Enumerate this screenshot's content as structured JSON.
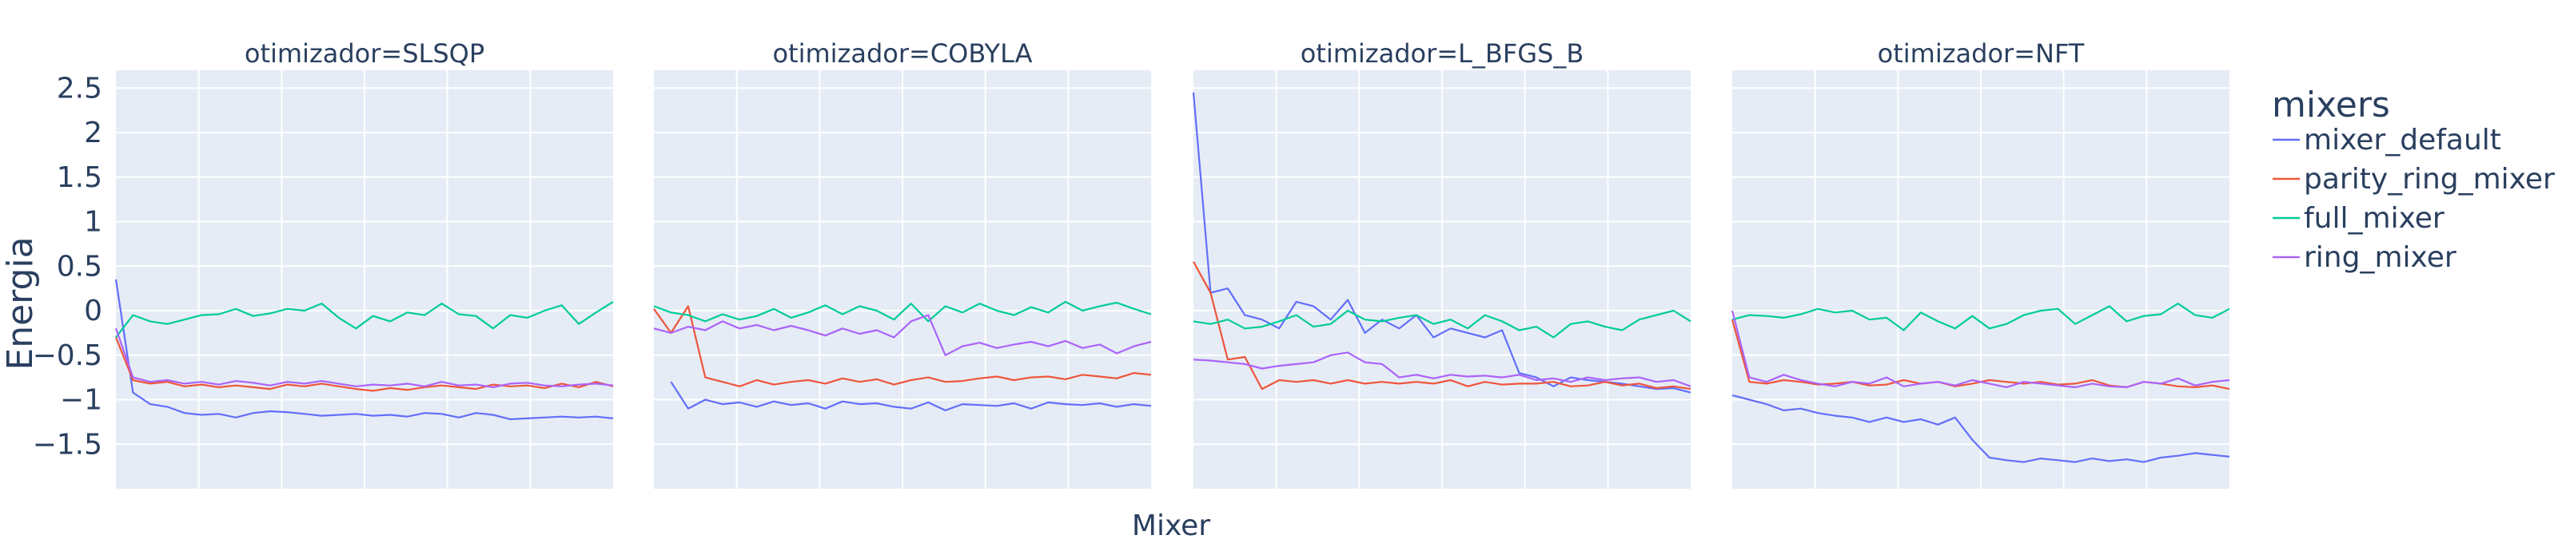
{
  "chart_data": {
    "type": "line",
    "ylabel": "Energia",
    "xlabel": "Mixer",
    "ylim": [
      -2.0,
      2.7
    ],
    "yticks": [
      {
        "v": 2.5,
        "label": "2.5"
      },
      {
        "v": 2,
        "label": "2"
      },
      {
        "v": 1.5,
        "label": "1.5"
      },
      {
        "v": 1,
        "label": "1"
      },
      {
        "v": 0.5,
        "label": "0.5"
      },
      {
        "v": 0,
        "label": "0"
      },
      {
        "v": -0.5,
        "label": "−0.5"
      },
      {
        "v": -1,
        "label": "−1"
      },
      {
        "v": -1.5,
        "label": "−1.5"
      }
    ],
    "legend": {
      "title": "mixers",
      "items": [
        {
          "name": "mixer_default",
          "color": "#636efa"
        },
        {
          "name": "parity_ring_mixer",
          "color": "#ef553b"
        },
        {
          "name": "full_mixer",
          "color": "#00cc96"
        },
        {
          "name": "ring_mixer",
          "color": "#ab63fa"
        }
      ]
    },
    "facets": [
      {
        "title": "otimizador=SLSQP",
        "series": {
          "mixer_default": [
            0.35,
            -0.92,
            -1.05,
            -1.08,
            -1.15,
            -1.17,
            -1.16,
            -1.2,
            -1.15,
            -1.13,
            -1.14,
            -1.16,
            -1.18,
            -1.17,
            -1.16,
            -1.18,
            -1.17,
            -1.19,
            -1.15,
            -1.16,
            -1.2,
            -1.15,
            -1.17,
            -1.22,
            -1.21,
            -1.2,
            -1.19,
            -1.2,
            -1.19,
            -1.21
          ],
          "parity_ring_mixer": [
            -0.3,
            -0.78,
            -0.82,
            -0.8,
            -0.85,
            -0.83,
            -0.86,
            -0.84,
            -0.86,
            -0.88,
            -0.83,
            -0.85,
            -0.82,
            -0.85,
            -0.88,
            -0.9,
            -0.87,
            -0.89,
            -0.86,
            -0.84,
            -0.86,
            -0.88,
            -0.83,
            -0.85,
            -0.84,
            -0.87,
            -0.82,
            -0.86,
            -0.8,
            -0.85
          ],
          "full_mixer": [
            -0.3,
            -0.05,
            -0.12,
            -0.15,
            -0.1,
            -0.05,
            -0.04,
            0.02,
            -0.06,
            -0.03,
            0.02,
            0.0,
            0.08,
            -0.08,
            -0.2,
            -0.06,
            -0.12,
            -0.02,
            -0.05,
            0.08,
            -0.04,
            -0.06,
            -0.2,
            -0.05,
            -0.08,
            0.0,
            0.06,
            -0.15,
            -0.02,
            0.1
          ],
          "ring_mixer": [
            -0.2,
            -0.75,
            -0.8,
            -0.78,
            -0.82,
            -0.8,
            -0.83,
            -0.79,
            -0.81,
            -0.84,
            -0.8,
            -0.82,
            -0.79,
            -0.82,
            -0.85,
            -0.83,
            -0.84,
            -0.82,
            -0.85,
            -0.8,
            -0.84,
            -0.83,
            -0.86,
            -0.82,
            -0.81,
            -0.84,
            -0.85,
            -0.83,
            -0.82,
            -0.84
          ]
        }
      },
      {
        "title": "otimizador=COBYLA",
        "series": {
          "mixer_default": [
            null,
            -0.8,
            -1.1,
            -1.0,
            -1.05,
            -1.03,
            -1.08,
            -1.02,
            -1.06,
            -1.04,
            -1.1,
            -1.02,
            -1.05,
            -1.04,
            -1.08,
            -1.1,
            -1.03,
            -1.12,
            -1.05,
            -1.06,
            -1.07,
            -1.04,
            -1.1,
            -1.03,
            -1.05,
            -1.06,
            -1.04,
            -1.08,
            -1.05,
            -1.07
          ],
          "parity_ring_mixer": [
            0.02,
            -0.25,
            0.05,
            -0.75,
            -0.8,
            -0.85,
            -0.78,
            -0.83,
            -0.8,
            -0.78,
            -0.82,
            -0.76,
            -0.8,
            -0.77,
            -0.83,
            -0.78,
            -0.75,
            -0.8,
            -0.79,
            -0.76,
            -0.74,
            -0.78,
            -0.75,
            -0.74,
            -0.77,
            -0.72,
            -0.74,
            -0.76,
            -0.7,
            -0.72
          ],
          "full_mixer": [
            0.05,
            -0.02,
            -0.05,
            -0.12,
            -0.04,
            -0.1,
            -0.06,
            0.02,
            -0.08,
            -0.02,
            0.06,
            -0.04,
            0.05,
            0.0,
            -0.1,
            0.08,
            -0.12,
            0.05,
            -0.02,
            0.08,
            0.0,
            -0.05,
            0.04,
            -0.02,
            0.1,
            0.0,
            0.05,
            0.09,
            0.02,
            -0.04
          ],
          "ring_mixer": [
            -0.2,
            -0.25,
            -0.18,
            -0.22,
            -0.12,
            -0.2,
            -0.16,
            -0.22,
            -0.17,
            -0.22,
            -0.28,
            -0.2,
            -0.26,
            -0.22,
            -0.3,
            -0.12,
            -0.05,
            -0.5,
            -0.4,
            -0.36,
            -0.42,
            -0.38,
            -0.35,
            -0.4,
            -0.34,
            -0.42,
            -0.38,
            -0.48,
            -0.4,
            -0.35
          ]
        }
      },
      {
        "title": "otimizador=L_BFGS_B",
        "series": {
          "mixer_default": [
            2.45,
            0.2,
            0.25,
            -0.05,
            -0.1,
            -0.2,
            0.1,
            0.05,
            -0.1,
            0.12,
            -0.25,
            -0.1,
            -0.2,
            -0.05,
            -0.3,
            -0.2,
            -0.25,
            -0.3,
            -0.22,
            -0.7,
            -0.75,
            -0.85,
            -0.75,
            -0.78,
            -0.8,
            -0.82,
            -0.85,
            -0.88,
            -0.87,
            -0.92
          ],
          "parity_ring_mixer": [
            0.55,
            0.2,
            -0.55,
            -0.52,
            -0.88,
            -0.78,
            -0.8,
            -0.78,
            -0.82,
            -0.78,
            -0.82,
            -0.8,
            -0.82,
            -0.8,
            -0.82,
            -0.78,
            -0.85,
            -0.8,
            -0.83,
            -0.82,
            -0.82,
            -0.8,
            -0.85,
            -0.84,
            -0.8,
            -0.84,
            -0.82,
            -0.87,
            -0.85,
            -0.88
          ],
          "full_mixer": [
            -0.12,
            -0.15,
            -0.1,
            -0.2,
            -0.18,
            -0.12,
            -0.05,
            -0.18,
            -0.15,
            0.0,
            -0.1,
            -0.12,
            -0.08,
            -0.05,
            -0.15,
            -0.1,
            -0.2,
            -0.05,
            -0.12,
            -0.22,
            -0.18,
            -0.3,
            -0.15,
            -0.12,
            -0.18,
            -0.22,
            -0.1,
            -0.05,
            0.0,
            -0.12
          ],
          "ring_mixer": [
            -0.55,
            -0.56,
            -0.58,
            -0.6,
            -0.65,
            -0.62,
            -0.6,
            -0.58,
            -0.5,
            -0.47,
            -0.58,
            -0.6,
            -0.75,
            -0.72,
            -0.76,
            -0.72,
            -0.74,
            -0.73,
            -0.75,
            -0.72,
            -0.78,
            -0.76,
            -0.8,
            -0.75,
            -0.78,
            -0.76,
            -0.75,
            -0.8,
            -0.78,
            -0.85
          ]
        }
      },
      {
        "title": "otimizador=NFT",
        "series": {
          "mixer_default": [
            -0.95,
            -1.0,
            -1.05,
            -1.12,
            -1.1,
            -1.15,
            -1.18,
            -1.2,
            -1.25,
            -1.2,
            -1.25,
            -1.22,
            -1.28,
            -1.2,
            -1.45,
            -1.65,
            -1.68,
            -1.7,
            -1.66,
            -1.68,
            -1.7,
            -1.66,
            -1.69,
            -1.67,
            -1.7,
            -1.65,
            -1.63,
            -1.6,
            -1.62,
            -1.64
          ],
          "parity_ring_mixer": [
            -0.1,
            -0.8,
            -0.82,
            -0.78,
            -0.8,
            -0.83,
            -0.82,
            -0.8,
            -0.84,
            -0.83,
            -0.78,
            -0.82,
            -0.8,
            -0.85,
            -0.82,
            -0.78,
            -0.8,
            -0.82,
            -0.8,
            -0.83,
            -0.82,
            -0.78,
            -0.84,
            -0.86,
            -0.8,
            -0.82,
            -0.85,
            -0.86,
            -0.84,
            -0.88
          ],
          "full_mixer": [
            -0.1,
            -0.05,
            -0.06,
            -0.08,
            -0.04,
            0.02,
            -0.02,
            0.0,
            -0.1,
            -0.08,
            -0.22,
            -0.02,
            -0.12,
            -0.2,
            -0.06,
            -0.2,
            -0.15,
            -0.05,
            0.0,
            0.02,
            -0.15,
            -0.05,
            0.05,
            -0.12,
            -0.06,
            -0.04,
            0.08,
            -0.05,
            -0.08,
            0.02
          ],
          "ring_mixer": [
            0.0,
            -0.75,
            -0.8,
            -0.72,
            -0.78,
            -0.82,
            -0.85,
            -0.8,
            -0.82,
            -0.75,
            -0.85,
            -0.82,
            -0.8,
            -0.84,
            -0.78,
            -0.82,
            -0.86,
            -0.8,
            -0.82,
            -0.84,
            -0.86,
            -0.82,
            -0.85,
            -0.86,
            -0.8,
            -0.82,
            -0.76,
            -0.84,
            -0.8,
            -0.78
          ]
        }
      }
    ]
  }
}
